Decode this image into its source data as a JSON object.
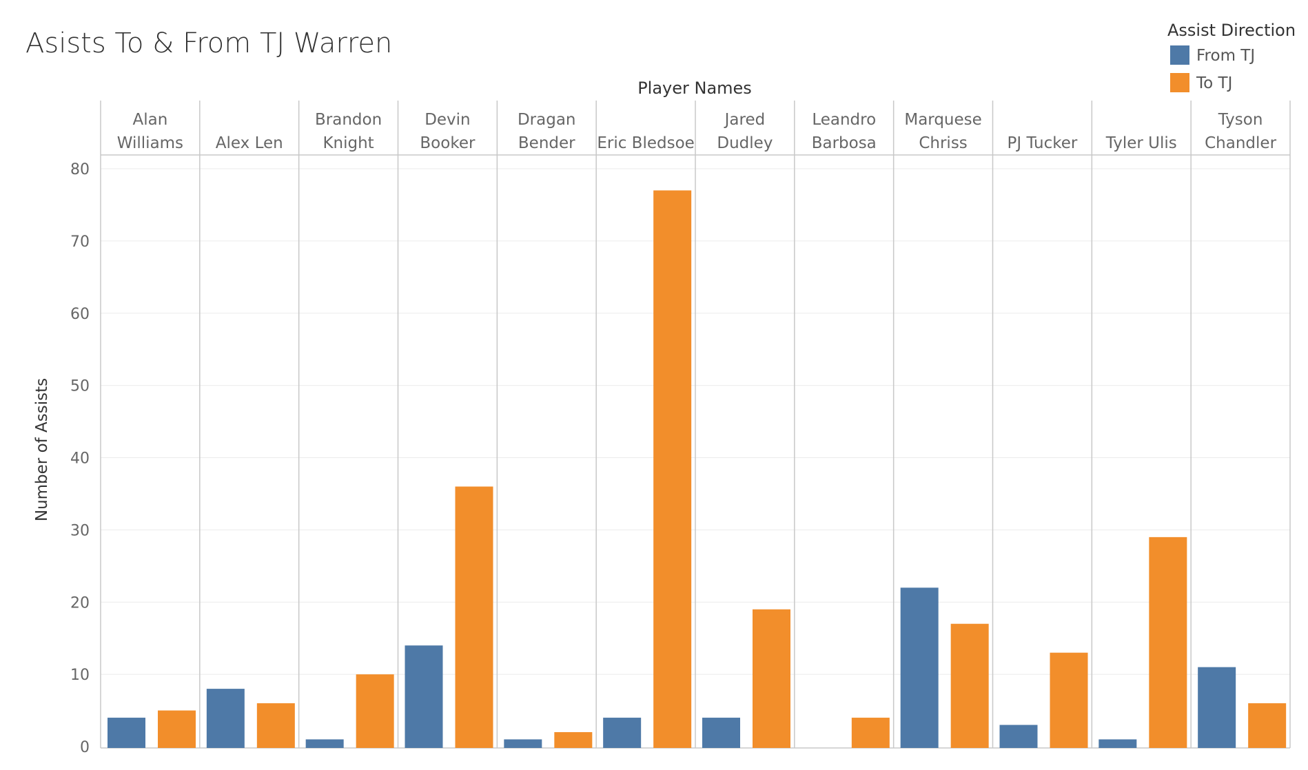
{
  "chart_data": {
    "type": "bar",
    "title": "Asists To & From TJ Warren",
    "column_header": "Player Names",
    "categories": [
      [
        "Alan",
        "Williams"
      ],
      [
        "Alex Len"
      ],
      [
        "Brandon",
        "Knight"
      ],
      [
        "Devin",
        "Booker"
      ],
      [
        "Dragan",
        "Bender"
      ],
      [
        "Eric Bledsoe"
      ],
      [
        "Jared",
        "Dudley"
      ],
      [
        "Leandro",
        "Barbosa"
      ],
      [
        "Marquese",
        "Chriss"
      ],
      [
        "PJ Tucker"
      ],
      [
        "Tyler Ulis"
      ],
      [
        "Tyson",
        "Chandler"
      ]
    ],
    "series": [
      {
        "name": "From TJ",
        "color": "#4e79a7",
        "values": [
          4,
          8,
          1,
          14,
          1,
          4,
          4,
          null,
          22,
          3,
          1,
          11
        ]
      },
      {
        "name": "To TJ",
        "color": "#f28e2b",
        "values": [
          5,
          6,
          10,
          36,
          2,
          77,
          19,
          4,
          17,
          13,
          29,
          6
        ]
      }
    ],
    "ylabel": "Number of Assists",
    "ylim": [
      0,
      80
    ],
    "yticks": [
      0,
      10,
      20,
      30,
      40,
      50,
      60,
      70,
      80
    ],
    "legend": {
      "title": "Assist Direction",
      "position": "top-right"
    },
    "grid": true
  }
}
